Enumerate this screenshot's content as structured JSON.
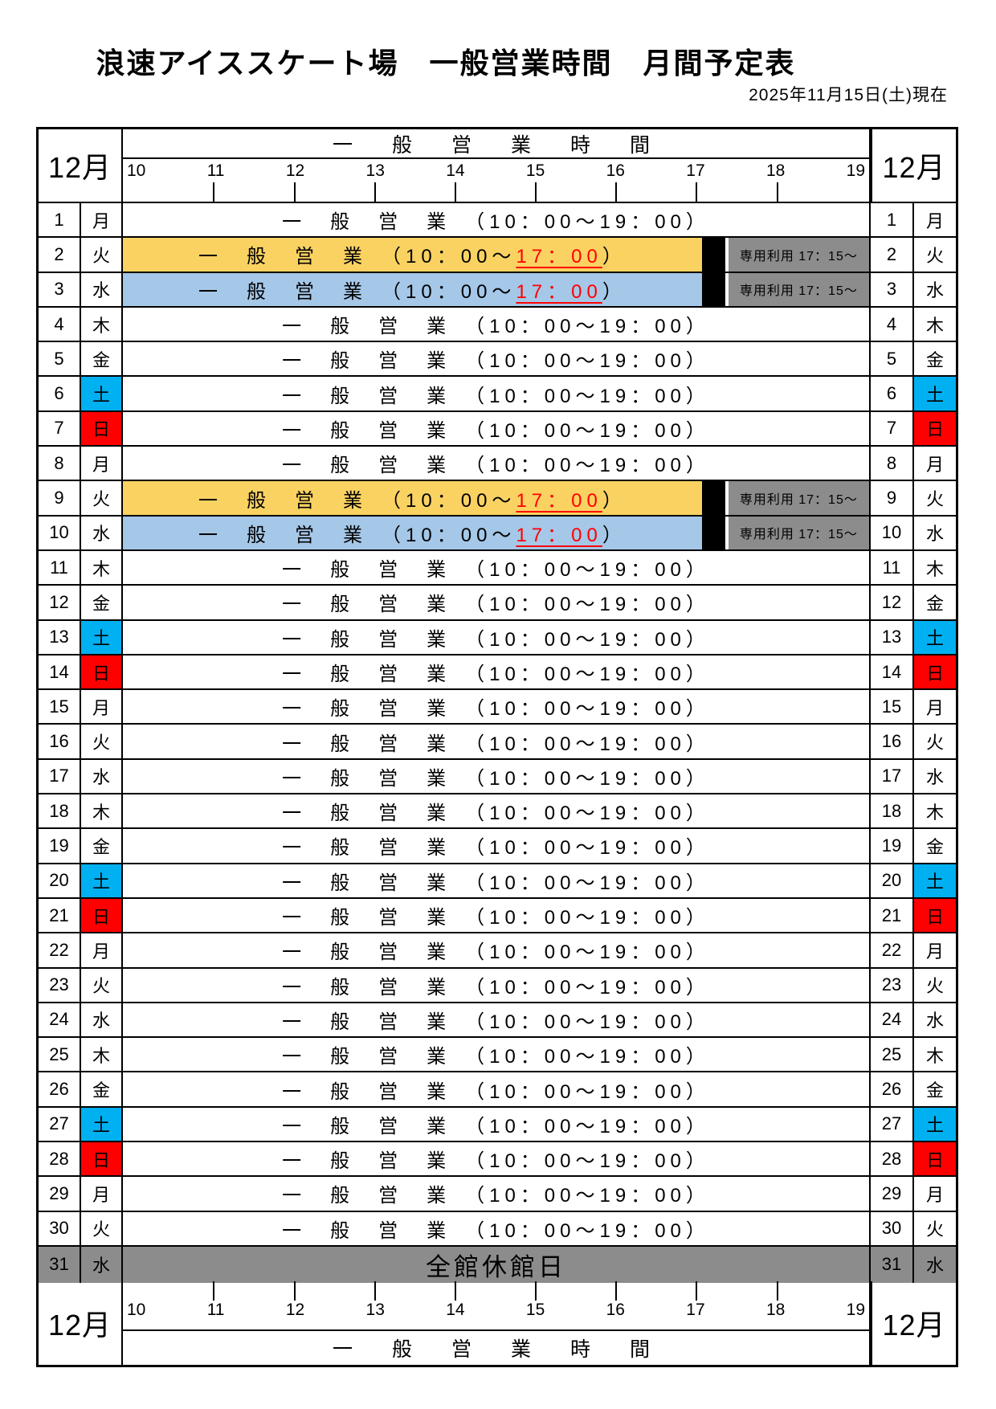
{
  "title": "浪速アイススケート場　一般営業時間　月間予定表",
  "as_of": "2025年11月15日(土)現在",
  "calendar": {
    "month_label": "12月",
    "hours_header_label": "一　般　営　業　時　間",
    "hours": [
      "10",
      "11",
      "12",
      "13",
      "14",
      "15",
      "16",
      "17",
      "18",
      "19"
    ]
  },
  "texts": {
    "normal_row": "一　般　営　業　（10：00～19：00）",
    "short_prefix": "一　般　営　業　（10：00～",
    "short_end_time": "17：00",
    "short_suffix": "）",
    "reserved": "専用利用 17：15～",
    "closed": "全館休館日"
  },
  "legend_colors": {
    "saturday_cyan": "#00B0F0",
    "sunday_red": "#FF0000",
    "tuesday_short_yellow": "#F9D262",
    "wednesday_short_blue": "#A5C7E8",
    "reserved_gray": "#8C8C8C",
    "closed_gray": "#8C8C8C",
    "early_close_red": "#FF0000"
  },
  "rows": [
    {
      "day": "1",
      "weekday": "月",
      "type": "normal"
    },
    {
      "day": "2",
      "weekday": "火",
      "type": "short-yellow"
    },
    {
      "day": "3",
      "weekday": "水",
      "type": "short-blue"
    },
    {
      "day": "4",
      "weekday": "木",
      "type": "normal"
    },
    {
      "day": "5",
      "weekday": "金",
      "type": "normal"
    },
    {
      "day": "6",
      "weekday": "土",
      "type": "normal",
      "dow_color": "saturday_cyan"
    },
    {
      "day": "7",
      "weekday": "日",
      "type": "normal",
      "dow_color": "sunday_red"
    },
    {
      "day": "8",
      "weekday": "月",
      "type": "normal"
    },
    {
      "day": "9",
      "weekday": "火",
      "type": "short-yellow"
    },
    {
      "day": "10",
      "weekday": "水",
      "type": "short-blue"
    },
    {
      "day": "11",
      "weekday": "木",
      "type": "normal"
    },
    {
      "day": "12",
      "weekday": "金",
      "type": "normal"
    },
    {
      "day": "13",
      "weekday": "土",
      "type": "normal",
      "dow_color": "saturday_cyan"
    },
    {
      "day": "14",
      "weekday": "日",
      "type": "normal",
      "dow_color": "sunday_red"
    },
    {
      "day": "15",
      "weekday": "月",
      "type": "normal"
    },
    {
      "day": "16",
      "weekday": "火",
      "type": "normal"
    },
    {
      "day": "17",
      "weekday": "水",
      "type": "normal"
    },
    {
      "day": "18",
      "weekday": "木",
      "type": "normal"
    },
    {
      "day": "19",
      "weekday": "金",
      "type": "normal"
    },
    {
      "day": "20",
      "weekday": "土",
      "type": "normal",
      "dow_color": "saturday_cyan"
    },
    {
      "day": "21",
      "weekday": "日",
      "type": "normal",
      "dow_color": "sunday_red"
    },
    {
      "day": "22",
      "weekday": "月",
      "type": "normal"
    },
    {
      "day": "23",
      "weekday": "火",
      "type": "normal"
    },
    {
      "day": "24",
      "weekday": "水",
      "type": "normal"
    },
    {
      "day": "25",
      "weekday": "木",
      "type": "normal"
    },
    {
      "day": "26",
      "weekday": "金",
      "type": "normal"
    },
    {
      "day": "27",
      "weekday": "土",
      "type": "normal",
      "dow_color": "saturday_cyan"
    },
    {
      "day": "28",
      "weekday": "日",
      "type": "normal",
      "dow_color": "sunday_red"
    },
    {
      "day": "29",
      "weekday": "月",
      "type": "normal"
    },
    {
      "day": "30",
      "weekday": "火",
      "type": "normal"
    },
    {
      "day": "31",
      "weekday": "水",
      "type": "closed"
    }
  ]
}
